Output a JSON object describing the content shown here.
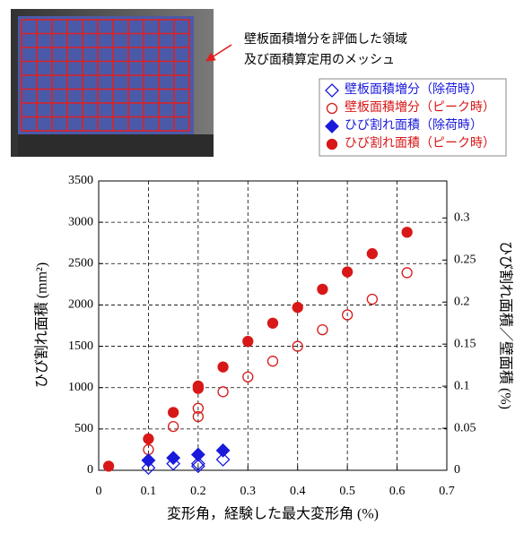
{
  "chart_data": {
    "type": "scatter",
    "annotations": [
      "壁板面積増分を評価した領域",
      "及び面積算定用のメッシュ"
    ],
    "x_label": "変形角，経験した最大変形角 (%)",
    "y_label": "ひび割れ面積 (mm²)",
    "y2_label": "ひび割れ面積／壁面積 (%)",
    "xlim": [
      0,
      0.7
    ],
    "xticks": [
      0,
      0.1,
      0.2,
      0.3,
      0.4,
      0.5,
      0.6,
      0.7
    ],
    "ylim": [
      0,
      3500
    ],
    "yticks": [
      0,
      500,
      1000,
      1500,
      2000,
      2500,
      3000,
      3500
    ],
    "y2lim": [
      0,
      0.344
    ],
    "y2ticks": [
      0,
      0.05,
      0.1,
      0.15,
      0.2,
      0.25,
      0.3
    ],
    "grid": true,
    "legend": "top-right",
    "series": [
      {
        "name": "壁板面積増分（除荷時）",
        "color": "#1a1adb",
        "marker": "diamond",
        "filled": false,
        "x": [
          0.1,
          0.15,
          0.2,
          0.2,
          0.25
        ],
        "values": [
          30,
          80,
          50,
          80,
          130
        ]
      },
      {
        "name": "壁板面積増分（ピーク時）",
        "color": "#d81818",
        "marker": "circle",
        "filled": false,
        "x": [
          0.1,
          0.15,
          0.2,
          0.2,
          0.25,
          0.3,
          0.35,
          0.4,
          0.45,
          0.5,
          0.55,
          0.62
        ],
        "values": [
          250,
          530,
          650,
          750,
          950,
          1130,
          1320,
          1500,
          1700,
          1880,
          2070,
          2390
        ]
      },
      {
        "name": "ひび割れ面積（除荷時）",
        "color": "#1a1adb",
        "marker": "diamond",
        "filled": true,
        "x": [
          0.1,
          0.15,
          0.2,
          0.25
        ],
        "values": [
          120,
          150,
          190,
          240
        ]
      },
      {
        "name": "ひび割れ面積（ピーク時）",
        "color": "#d81818",
        "marker": "circle",
        "filled": true,
        "x": [
          0.02,
          0.1,
          0.15,
          0.2,
          0.2,
          0.25,
          0.3,
          0.35,
          0.4,
          0.45,
          0.5,
          0.55,
          0.62
        ],
        "values": [
          50,
          380,
          700,
          990,
          1020,
          1250,
          1560,
          1780,
          1970,
          2190,
          2400,
          2620,
          2880
        ]
      }
    ]
  }
}
